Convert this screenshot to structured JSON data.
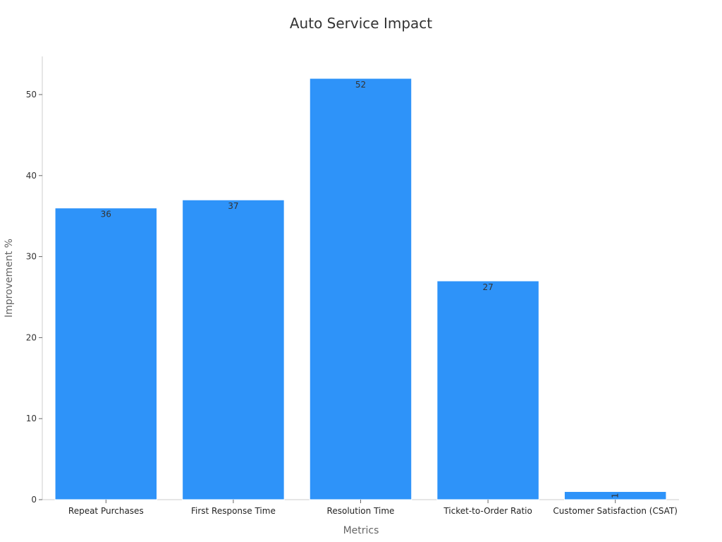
{
  "chart_data": {
    "type": "bar",
    "title": "Auto Service Impact",
    "xlabel": "Metrics",
    "ylabel": "Improvement %",
    "categories": [
      "Repeat Purchases",
      "First Response Time",
      "Resolution Time",
      "Ticket-to-Order Ratio",
      "Customer Satisfaction (CSAT)"
    ],
    "values": [
      36,
      37,
      52,
      27,
      1
    ],
    "ylim": [
      0,
      55
    ],
    "yticks": [
      0,
      10,
      20,
      30,
      40,
      50
    ],
    "grid": false,
    "legend": "none",
    "bar_color": "#2E93F9"
  }
}
